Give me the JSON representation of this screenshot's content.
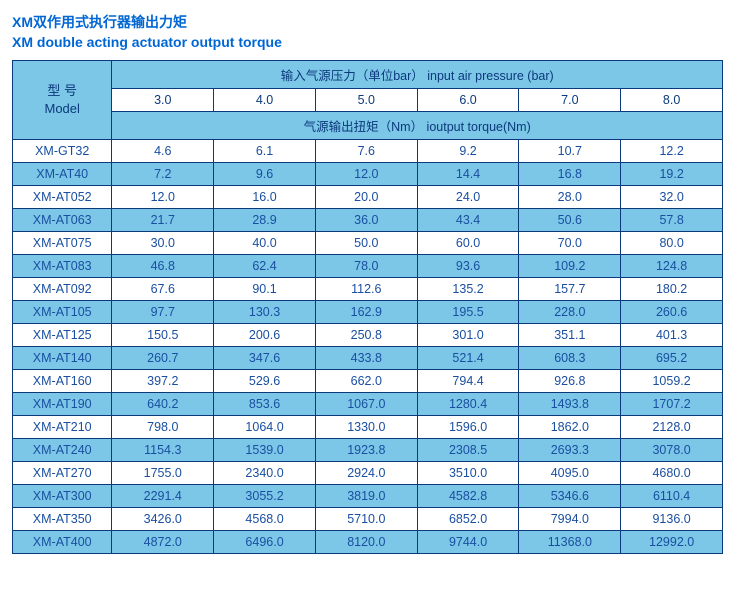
{
  "title_cn": "XM双作用式执行器输出力矩",
  "title_en": "XM double acting  actuator output torque",
  "header": {
    "model_label_cn": "型 号",
    "model_label_en": "Model",
    "pressure_label": "输入气源压力（单位bar）   input air pressure (bar)",
    "torque_label": "气源输出扭矩（Nm）   ioutput torque(Nm)",
    "pressures": [
      "3.0",
      "4.0",
      "5.0",
      "6.0",
      "7.0",
      "8.0"
    ]
  },
  "colors": {
    "border": "#0b3a7a",
    "header_bg": "#7cc7e8",
    "row_even_bg": "#7cc7e8",
    "row_odd_bg": "#ffffff",
    "text": "#1a4fa0",
    "title": "#0066d4"
  },
  "rows": [
    {
      "model": "XM-GT32",
      "vals": [
        "4.6",
        "6.1",
        "7.6",
        "9.2",
        "10.7",
        "12.2"
      ]
    },
    {
      "model": "XM-AT40",
      "vals": [
        "7.2",
        "9.6",
        "12.0",
        "14.4",
        "16.8",
        "19.2"
      ]
    },
    {
      "model": "XM-AT052",
      "vals": [
        "12.0",
        "16.0",
        "20.0",
        "24.0",
        "28.0",
        "32.0"
      ]
    },
    {
      "model": "XM-AT063",
      "vals": [
        "21.7",
        "28.9",
        "36.0",
        "43.4",
        "50.6",
        "57.8"
      ]
    },
    {
      "model": "XM-AT075",
      "vals": [
        "30.0",
        "40.0",
        "50.0",
        "60.0",
        "70.0",
        "80.0"
      ]
    },
    {
      "model": "XM-AT083",
      "vals": [
        "46.8",
        "62.4",
        "78.0",
        "93.6",
        "109.2",
        "124.8"
      ]
    },
    {
      "model": "XM-AT092",
      "vals": [
        "67.6",
        "90.1",
        "112.6",
        "135.2",
        "157.7",
        "180.2"
      ]
    },
    {
      "model": "XM-AT105",
      "vals": [
        "97.7",
        "130.3",
        "162.9",
        "195.5",
        "228.0",
        "260.6"
      ]
    },
    {
      "model": "XM-AT125",
      "vals": [
        "150.5",
        "200.6",
        "250.8",
        "301.0",
        "351.1",
        "401.3"
      ]
    },
    {
      "model": "XM-AT140",
      "vals": [
        "260.7",
        "347.6",
        "433.8",
        "521.4",
        "608.3",
        "695.2"
      ]
    },
    {
      "model": "XM-AT160",
      "vals": [
        "397.2",
        "529.6",
        "662.0",
        "794.4",
        "926.8",
        "1059.2"
      ]
    },
    {
      "model": "XM-AT190",
      "vals": [
        "640.2",
        "853.6",
        "1067.0",
        "1280.4",
        "1493.8",
        "1707.2"
      ]
    },
    {
      "model": "XM-AT210",
      "vals": [
        "798.0",
        "1064.0",
        "1330.0",
        "1596.0",
        "1862.0",
        "2128.0"
      ]
    },
    {
      "model": "XM-AT240",
      "vals": [
        "1154.3",
        "1539.0",
        "1923.8",
        "2308.5",
        "2693.3",
        "3078.0"
      ]
    },
    {
      "model": "XM-AT270",
      "vals": [
        "1755.0",
        "2340.0",
        "2924.0",
        "3510.0",
        "4095.0",
        "4680.0"
      ]
    },
    {
      "model": "XM-AT300",
      "vals": [
        "2291.4",
        "3055.2",
        "3819.0",
        "4582.8",
        "5346.6",
        "6110.4"
      ]
    },
    {
      "model": "XM-AT350",
      "vals": [
        "3426.0",
        "4568.0",
        "5710.0",
        "6852.0",
        "7994.0",
        "9136.0"
      ]
    },
    {
      "model": "XM-AT400",
      "vals": [
        "4872.0",
        "6496.0",
        "8120.0",
        "9744.0",
        "11368.0",
        "12992.0"
      ]
    }
  ]
}
